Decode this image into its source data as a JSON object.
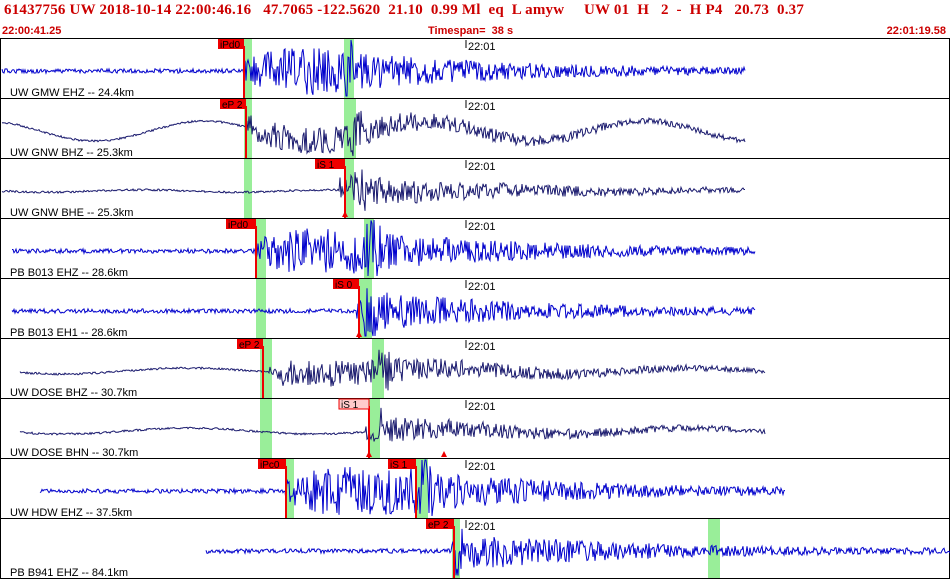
{
  "header": {
    "title": "61437756 UW 2018-10-14 22:00:46.16   47.7065 -122.5620  21.10  0.99 Ml  eq  L amyw     UW 01  H   2  -  H P4   20.73  0.37",
    "start_time": "22:00:41.25",
    "timespan": "Timespan=  38 s",
    "end_time": "22:01:19.58"
  },
  "colors": {
    "trace": "#0000cc",
    "trace_dark": "#1a1a6e",
    "pick_flag": "#ee0000",
    "pick_flag_light": "#ffcccc",
    "window": "#99ee99",
    "border": "#000000",
    "header_text": "#cc0000"
  },
  "panels": [
    {
      "label": "UW GMW EHZ -- 24.4km",
      "time_tick": "22:01",
      "picks": [
        "iPd0"
      ],
      "style": "hf"
    },
    {
      "label": "UW GNW BHZ -- 25.3km",
      "time_tick": "22:01",
      "picks": [
        "eP 2"
      ],
      "style": "lf"
    },
    {
      "label": "UW GNW BHE -- 25.3km",
      "time_tick": "22:01",
      "picks": [
        "iS 1"
      ],
      "style": "lf"
    },
    {
      "label": "PB B013 EHZ -- 28.6km",
      "time_tick": "22:01",
      "picks": [
        "iPd0"
      ],
      "style": "hf"
    },
    {
      "label": "PB B013 EH1 -- 28.6km",
      "time_tick": "22:01",
      "picks": [
        "iS 0"
      ],
      "style": "hf"
    },
    {
      "label": "UW DOSE BHZ -- 30.7km",
      "time_tick": "22:01",
      "picks": [
        "eP 2"
      ],
      "style": "lf"
    },
    {
      "label": "UW DOSE BHN -- 30.7km",
      "time_tick": "22:01",
      "picks": [
        "iS 1"
      ],
      "style": "lf"
    },
    {
      "label": "UW HDW EHZ -- 37.5km",
      "time_tick": "22:01",
      "picks": [
        "iPc0",
        "iS 1"
      ],
      "style": "hf"
    },
    {
      "label": "PB B941 EHZ -- 84.1km",
      "time_tick": "22:01",
      "picks": [
        "eP 2"
      ],
      "style": "hf"
    }
  ]
}
